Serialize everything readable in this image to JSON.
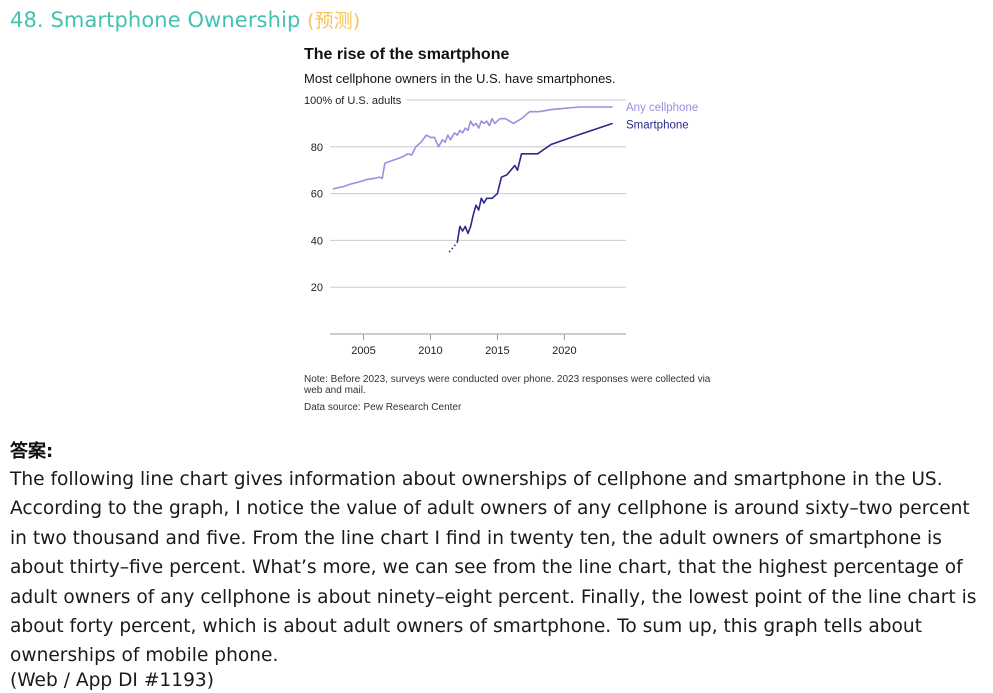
{
  "heading": {
    "title": "48. Smartphone Ownership",
    "tag": "(预测)"
  },
  "chart_data": {
    "type": "line",
    "title": "The rise of the smartphone",
    "subtitle": "Most cellphone owners in the U.S. have smartphones.",
    "y_top_label": "100% of U.S. adults",
    "ylim": [
      0,
      100
    ],
    "xlim": [
      2002.5,
      2024.6
    ],
    "y_ticks": [
      20,
      40,
      60,
      80
    ],
    "x_ticks": [
      2005,
      2010,
      2015,
      2020
    ],
    "grid": true,
    "legend_placement": "right, at line ends",
    "series": [
      {
        "name": "Any cellphone",
        "color": "#9b8fe0",
        "x": [
          2002.7,
          2003.5,
          2004.0,
          2004.7,
          2005.2,
          2005.8,
          2006.2,
          2006.4,
          2006.6,
          2007.1,
          2007.6,
          2008.0,
          2008.3,
          2008.6,
          2008.9,
          2009.3,
          2009.7,
          2010.0,
          2010.3,
          2010.6,
          2010.9,
          2011.1,
          2011.3,
          2011.5,
          2011.8,
          2012.0,
          2012.2,
          2012.4,
          2012.6,
          2012.8,
          2013.0,
          2013.2,
          2013.4,
          2013.6,
          2013.8,
          2014.0,
          2014.2,
          2014.4,
          2014.6,
          2014.8,
          2015.2,
          2015.6,
          2016.2,
          2016.8,
          2017.4,
          2018.1,
          2019.1,
          2021.1,
          2023.6
        ],
        "y": [
          62,
          63,
          64,
          65,
          66,
          66.5,
          67,
          66.5,
          73,
          74,
          75,
          76,
          77,
          76.5,
          80,
          82,
          85,
          84,
          84,
          80,
          83,
          82,
          85,
          83,
          86,
          85,
          87,
          86,
          88,
          87,
          91,
          89,
          90,
          88,
          91,
          90,
          91,
          89,
          92,
          90,
          92,
          92,
          90,
          92,
          95,
          95,
          96,
          97,
          97
        ]
      },
      {
        "name": "Smartphone",
        "color": "#2b2a8a",
        "x": [
          2011.4,
          2011.7,
          2012.0,
          2012.2,
          2012.4,
          2012.6,
          2012.8,
          2013.0,
          2013.2,
          2013.4,
          2013.6,
          2013.8,
          2014.0,
          2014.2,
          2014.6,
          2015.0,
          2015.3,
          2015.7,
          2016.0,
          2016.3,
          2016.5,
          2016.8,
          2017.2,
          2017.6,
          2018.0,
          2019.0,
          2021.0,
          2023.6
        ],
        "y": [
          35,
          37,
          39,
          46,
          44,
          46,
          43,
          46,
          51,
          55,
          53,
          58,
          56,
          58,
          58,
          60,
          67,
          68,
          70,
          72,
          70,
          77,
          77,
          77,
          77,
          81,
          85,
          90
        ]
      }
    ]
  },
  "note": "Note: Before 2023, surveys were conducted over phone. 2023 responses were collected via web and mail.",
  "source": "Data source: Pew Research Center",
  "answer": {
    "label": "答案:",
    "text": "The following line chart gives information about ownerships of cellphone and smartphone in the US. According to the graph, I notice the value of adult owners of any cellphone is around sixty–two percent in two thousand and five. From the line chart I find in twenty ten, the adult owners of smartphone is about thirty–five percent. What’s more, we can see from the line chart, that the highest percentage of adult owners of any cellphone is about ninety–eight percent. Finally, the lowest point of the line chart is about forty percent, which is about adult owners of smartphone. To sum up, this graph tells about ownerships of mobile phone.",
    "reference": "(Web / App DI #1193)"
  }
}
